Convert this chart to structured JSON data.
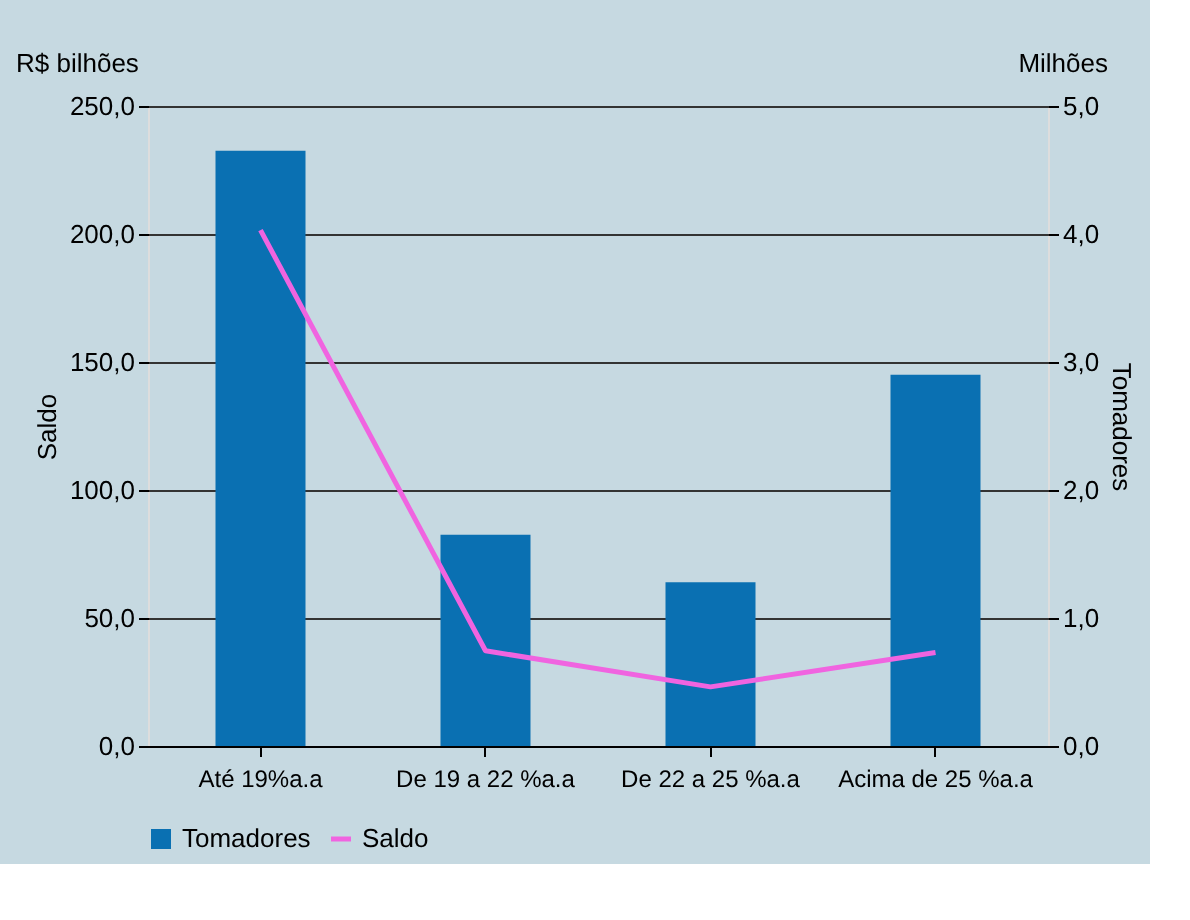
{
  "chart_data": {
    "type": "bar",
    "categories": [
      "Até 19%a.a",
      "De 19 a 22 %a.a",
      "De 22 a 25 %a.a",
      "Acima de 25 %a.a"
    ],
    "series": [
      {
        "name": "Tomadores",
        "color": "#0a70b2",
        "axis": "y2",
        "values": [
          4.65,
          1.65,
          1.28,
          2.9
        ]
      },
      {
        "name": "Saldo",
        "color": "#f064e0",
        "type": "line",
        "values": [
          201.5,
          37.2,
          23.1,
          36.5
        ]
      }
    ],
    "ylabel": "Saldo",
    "y2label": "Tomadores",
    "ylim": [
      0,
      250
    ],
    "yticks": [
      {
        "value": 0,
        "label": "0,0"
      },
      {
        "value": 50,
        "label": "50,0"
      },
      {
        "value": 100,
        "label": "100,0"
      },
      {
        "value": 150,
        "label": "150,0"
      },
      {
        "value": 200,
        "label": "200,0"
      },
      {
        "value": 250,
        "label": "250,0"
      }
    ],
    "y2lim": [
      0,
      5
    ],
    "y2ticks": [
      {
        "value": 0,
        "label": "0,0"
      },
      {
        "value": 1,
        "label": "1,0"
      },
      {
        "value": 2,
        "label": "2,0"
      },
      {
        "value": 3,
        "label": "3,0"
      },
      {
        "value": 4,
        "label": "4,0"
      },
      {
        "value": 5,
        "label": "5,0"
      }
    ],
    "annotations": [
      "R$ bilhões",
      "Milhões"
    ],
    "grid": "y",
    "legend": "bottom",
    "marker": "none",
    "line_style": "solid"
  }
}
